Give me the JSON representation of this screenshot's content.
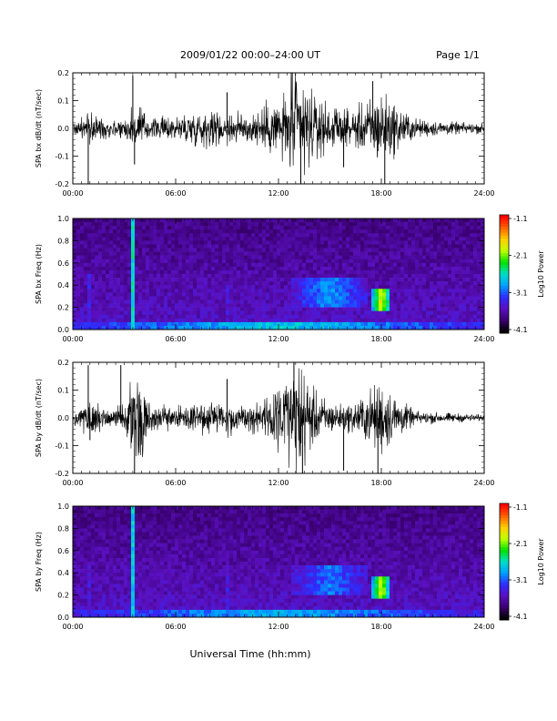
{
  "header": {
    "title": "2009/01/22  00:00–24:00 UT",
    "page": "Page 1/1"
  },
  "footer": {
    "xlabel": "Universal Time (hh:mm)"
  },
  "colorbar": {
    "ticks": [
      "-1.1",
      "-2.1",
      "-3.1",
      "-4.1"
    ],
    "label": "Log10 Power",
    "colors": [
      "#000000",
      "#3a0070",
      "#5a10c0",
      "#2d2dff",
      "#00a0ff",
      "#00e0c8",
      "#00e000",
      "#c0ff00",
      "#ffd000",
      "#ff6000",
      "#ff0000"
    ]
  },
  "chart_data": [
    {
      "type": "line",
      "ylabel": "SPA bx dB/dt (nT/sec)",
      "xlim": [
        0,
        24
      ],
      "ylim": [
        -0.2,
        0.2
      ],
      "xticks": [
        "00:00",
        "06:00",
        "12:00",
        "18:00",
        "24:00"
      ],
      "yticks": [
        "0.2",
        "0.1",
        "0.0",
        "-0.1",
        "-0.2"
      ],
      "envelope": [
        {
          "t": 0.0,
          "amp": 0.02
        },
        {
          "t": 1.0,
          "amp": 0.05
        },
        {
          "t": 2.0,
          "amp": 0.03
        },
        {
          "t": 3.0,
          "amp": 0.03
        },
        {
          "t": 3.7,
          "amp": 0.08
        },
        {
          "t": 4.5,
          "amp": 0.03
        },
        {
          "t": 6.0,
          "amp": 0.04
        },
        {
          "t": 7.5,
          "amp": 0.06
        },
        {
          "t": 9.0,
          "amp": 0.05
        },
        {
          "t": 10.0,
          "amp": 0.05
        },
        {
          "t": 11.0,
          "amp": 0.06
        },
        {
          "t": 12.5,
          "amp": 0.12
        },
        {
          "t": 13.2,
          "amp": 0.2
        },
        {
          "t": 14.0,
          "amp": 0.1
        },
        {
          "t": 15.0,
          "amp": 0.07
        },
        {
          "t": 16.0,
          "amp": 0.05
        },
        {
          "t": 17.0,
          "amp": 0.08
        },
        {
          "t": 18.0,
          "amp": 0.12
        },
        {
          "t": 19.0,
          "amp": 0.07
        },
        {
          "t": 20.0,
          "amp": 0.03
        },
        {
          "t": 22.0,
          "amp": 0.02
        },
        {
          "t": 24.0,
          "amp": 0.015
        }
      ],
      "spikes": [
        {
          "t": 0.9,
          "y": -0.2
        },
        {
          "t": 3.5,
          "y": 0.19
        },
        {
          "t": 3.6,
          "y": -0.13
        },
        {
          "t": 9.0,
          "y": 0.13
        },
        {
          "t": 12.8,
          "y": 0.2
        },
        {
          "t": 13.3,
          "y": -0.2
        },
        {
          "t": 15.8,
          "y": -0.14
        },
        {
          "t": 17.5,
          "y": 0.17
        },
        {
          "t": 18.2,
          "y": -0.2
        }
      ]
    },
    {
      "type": "heatmap",
      "ylabel": "SPA bx Freq (Hz)",
      "xlim": [
        0,
        24
      ],
      "ylim": [
        0.0,
        1.0
      ],
      "xticks": [
        "00:00",
        "06:00",
        "12:00",
        "18:00",
        "24:00"
      ],
      "yticks": [
        "1.0",
        "0.8",
        "0.6",
        "0.4",
        "0.2",
        "0.0"
      ],
      "color_range": [
        -4.1,
        -1.1
      ],
      "features": [
        {
          "t": 3.5,
          "width": 0.25,
          "fmin": 0.0,
          "fmax": 1.0,
          "level": -2.6
        },
        {
          "t": 0.9,
          "width": 0.3,
          "fmin": 0.0,
          "fmax": 0.5,
          "level": -3.2
        },
        {
          "t": 9.0,
          "width": 0.2,
          "fmin": 0.0,
          "fmax": 0.4,
          "level": -3.3
        },
        {
          "t": 15.0,
          "width": 4.5,
          "fmin": 0.2,
          "fmax": 0.45,
          "level": -2.9
        },
        {
          "t": 18.0,
          "width": 1.0,
          "fmin": 0.18,
          "fmax": 0.36,
          "level": -1.8
        },
        {
          "t": 12.0,
          "width": 24.0,
          "fmin": 0.0,
          "fmax": 0.06,
          "level": -2.7
        }
      ]
    },
    {
      "type": "line",
      "ylabel": "SPA by dB/dt (nT/sec)",
      "xlim": [
        0,
        24
      ],
      "ylim": [
        -0.2,
        0.2
      ],
      "xticks": [
        "00:00",
        "06:00",
        "12:00",
        "18:00",
        "24:00"
      ],
      "yticks": [
        "0.2",
        "0.1",
        "0.0",
        "-0.1",
        "-0.2"
      ],
      "envelope": [
        {
          "t": 0.0,
          "amp": 0.02
        },
        {
          "t": 1.0,
          "amp": 0.06
        },
        {
          "t": 2.0,
          "amp": 0.03
        },
        {
          "t": 3.0,
          "amp": 0.04
        },
        {
          "t": 3.7,
          "amp": 0.2
        },
        {
          "t": 4.5,
          "amp": 0.04
        },
        {
          "t": 6.0,
          "amp": 0.03
        },
        {
          "t": 7.5,
          "amp": 0.05
        },
        {
          "t": 9.0,
          "amp": 0.05
        },
        {
          "t": 10.0,
          "amp": 0.04
        },
        {
          "t": 11.0,
          "amp": 0.05
        },
        {
          "t": 12.5,
          "amp": 0.12
        },
        {
          "t": 13.2,
          "amp": 0.2
        },
        {
          "t": 14.0,
          "amp": 0.09
        },
        {
          "t": 15.0,
          "amp": 0.05
        },
        {
          "t": 16.0,
          "amp": 0.04
        },
        {
          "t": 17.0,
          "amp": 0.07
        },
        {
          "t": 18.0,
          "amp": 0.12
        },
        {
          "t": 19.0,
          "amp": 0.06
        },
        {
          "t": 20.0,
          "amp": 0.02
        },
        {
          "t": 22.0,
          "amp": 0.015
        },
        {
          "t": 24.0,
          "amp": 0.01
        }
      ],
      "spikes": [
        {
          "t": 0.9,
          "y": 0.19
        },
        {
          "t": 1.0,
          "y": -0.08
        },
        {
          "t": 2.8,
          "y": 0.19
        },
        {
          "t": 3.6,
          "y": -0.2
        },
        {
          "t": 9.0,
          "y": 0.14
        },
        {
          "t": 12.9,
          "y": 0.2
        },
        {
          "t": 13.4,
          "y": -0.2
        },
        {
          "t": 15.8,
          "y": -0.19
        },
        {
          "t": 17.8,
          "y": -0.2
        }
      ]
    },
    {
      "type": "heatmap",
      "ylabel": "SPA by Freq (Hz)",
      "xlim": [
        0,
        24
      ],
      "ylim": [
        0.0,
        1.0
      ],
      "xticks": [
        "00:00",
        "06:00",
        "12:00",
        "18:00",
        "24:00"
      ],
      "yticks": [
        "1.0",
        "0.8",
        "0.6",
        "0.4",
        "0.2",
        "0.0"
      ],
      "color_range": [
        -4.1,
        -1.1
      ],
      "features": [
        {
          "t": 3.5,
          "width": 0.25,
          "fmin": 0.0,
          "fmax": 1.0,
          "level": -2.7
        },
        {
          "t": 0.9,
          "width": 0.3,
          "fmin": 0.0,
          "fmax": 0.45,
          "level": -3.3
        },
        {
          "t": 9.0,
          "width": 0.2,
          "fmin": 0.0,
          "fmax": 0.4,
          "level": -3.3
        },
        {
          "t": 15.0,
          "width": 4.5,
          "fmin": 0.2,
          "fmax": 0.45,
          "level": -3.0
        },
        {
          "t": 18.0,
          "width": 1.0,
          "fmin": 0.18,
          "fmax": 0.36,
          "level": -1.9
        },
        {
          "t": 12.0,
          "width": 24.0,
          "fmin": 0.0,
          "fmax": 0.06,
          "level": -2.8
        }
      ]
    }
  ]
}
